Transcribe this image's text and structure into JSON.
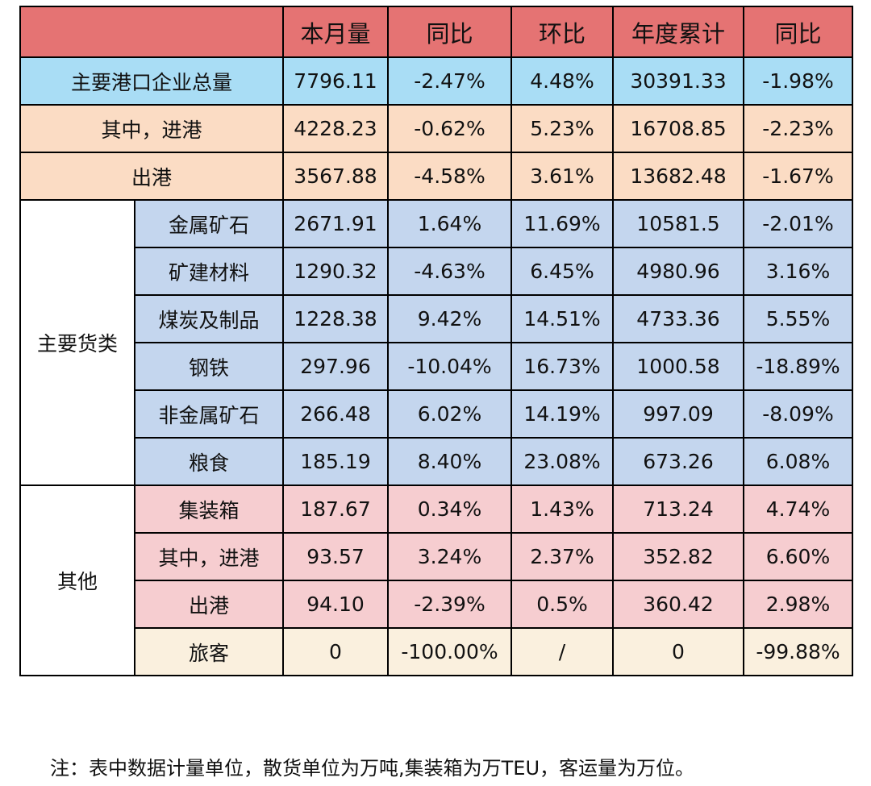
{
  "header": [
    "",
    "本月量",
    "同比",
    "环比",
    "年度累计",
    "同比"
  ],
  "rows": [
    {
      "label": "主要港口企业总量",
      "values": [
        "7796.11",
        "-2.47%",
        "4.48%",
        "30391.33",
        "-1.98%"
      ]
    },
    {
      "label": "其中，进港",
      "values": [
        "4228.23",
        "-0.62%",
        "5.23%",
        "16708.85",
        "-2.23%"
      ]
    },
    {
      "label": "出港",
      "values": [
        "3567.88",
        "-4.58%",
        "3.61%",
        "13682.48",
        "-1.67%"
      ]
    }
  ],
  "groups": [
    {
      "name": "主要货类",
      "rows": [
        {
          "label": "金属矿石",
          "values": [
            "2671.91",
            "1.64%",
            "11.69%",
            "10581.5",
            "-2.01%"
          ]
        },
        {
          "label": "矿建材料",
          "values": [
            "1290.32",
            "-4.63%",
            "6.45%",
            "4980.96",
            "3.16%"
          ]
        },
        {
          "label": "煤炭及制品",
          "values": [
            "1228.38",
            "9.42%",
            "14.51%",
            "4733.36",
            "5.55%"
          ]
        },
        {
          "label": "钢铁",
          "values": [
            "297.96",
            "-10.04%",
            "16.73%",
            "1000.58",
            "-18.89%"
          ]
        },
        {
          "label": "非金属矿石",
          "values": [
            "266.48",
            "6.02%",
            "14.19%",
            "997.09",
            "-8.09%"
          ]
        },
        {
          "label": "粮食",
          "values": [
            "185.19",
            "8.40%",
            "23.08%",
            "673.26",
            "6.08%"
          ]
        }
      ]
    },
    {
      "name": "其他",
      "rows": [
        {
          "label": "集装箱",
          "values": [
            "187.67",
            "0.34%",
            "1.43%",
            "713.24",
            "4.74%"
          ]
        },
        {
          "label": "其中，进港",
          "values": [
            "93.57",
            "3.24%",
            "2.37%",
            "352.82",
            "6.60%"
          ]
        },
        {
          "label": "出港",
          "values": [
            "94.10",
            "-2.39%",
            "0.5%",
            "360.42",
            "2.98%"
          ]
        },
        {
          "label": "旅客",
          "values": [
            "0",
            "-100.00%",
            "/",
            "0",
            "-99.88%"
          ]
        }
      ]
    }
  ],
  "note": "注：表中数据计量单位，散货单位为万吨,集装箱为万TEU，客运量为万位。",
  "colors": {
    "header": "#e57373",
    "total": "#a9ddf5",
    "inout": "#fbdcc4",
    "main_cargo": "#c4d6ee",
    "container": "#f6cdd0",
    "passenger": "#faf0de"
  }
}
